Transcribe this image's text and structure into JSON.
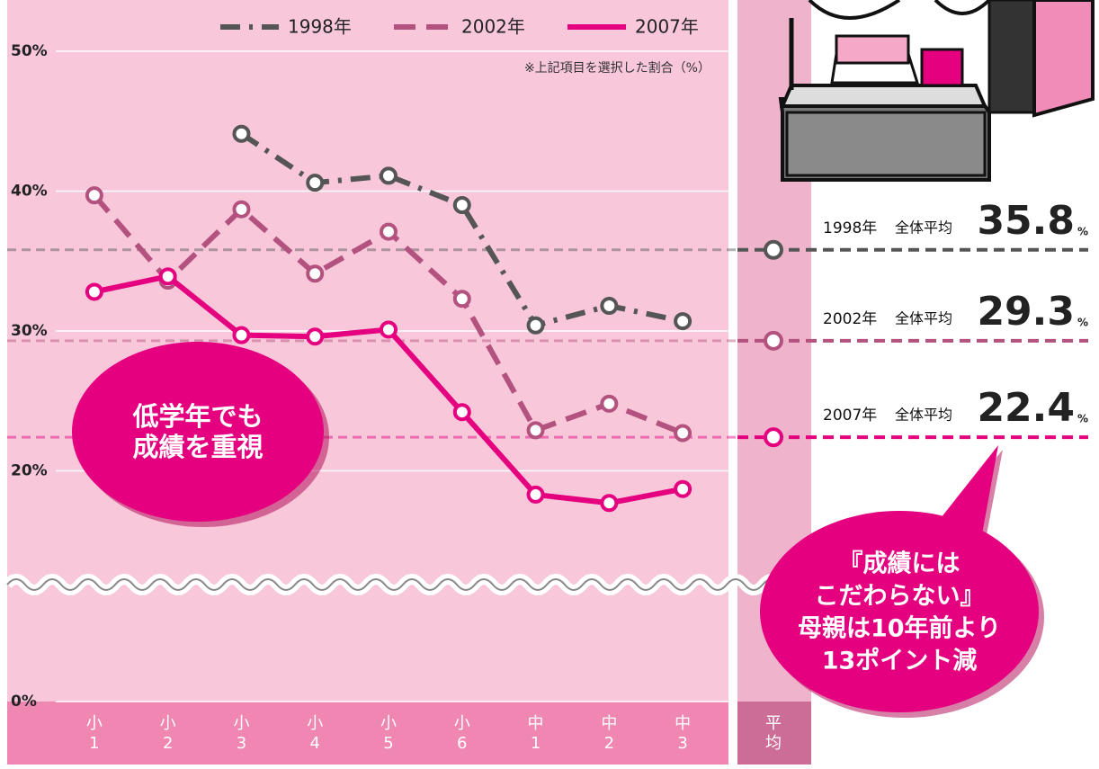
{
  "chart_data": {
    "type": "line",
    "note": "※上記項目を選択した割合（%）",
    "categories": [
      "小1",
      "小2",
      "小3",
      "小4",
      "小5",
      "小6",
      "中1",
      "中2",
      "中3"
    ],
    "average_category": "平均",
    "average_label": "全体平均",
    "average_unit": "%",
    "ylim": [
      0,
      50
    ],
    "yticks": [
      {
        "value": 0,
        "label": "0%"
      },
      {
        "value": 20,
        "label": "20%"
      },
      {
        "value": 30,
        "label": "30%"
      },
      {
        "value": 40,
        "label": "40%"
      },
      {
        "value": 50,
        "label": "50%"
      }
    ],
    "grid": true,
    "series": [
      {
        "name": "1998年",
        "color": "#555555",
        "dash": "dashdot",
        "values": [
          null,
          null,
          44.1,
          40.6,
          41.1,
          39.0,
          30.4,
          31.8,
          30.7
        ],
        "average": 35.8
      },
      {
        "name": "2002年",
        "color": "#b4527f",
        "dash": "dashed",
        "values": [
          39.7,
          33.6,
          38.7,
          34.1,
          37.1,
          32.3,
          22.9,
          24.8,
          22.7
        ],
        "average": 29.3
      },
      {
        "name": "2007年",
        "color": "#e4007f",
        "dash": "solid",
        "values": [
          32.8,
          33.9,
          29.7,
          29.6,
          30.1,
          24.2,
          18.3,
          17.7,
          18.7
        ],
        "average": 22.4
      }
    ],
    "annotations": [
      {
        "lines": [
          "低学年でも",
          "成績を重視"
        ]
      },
      {
        "lines": [
          "『成績には",
          "こだわらない』",
          "母親は10年前より",
          "13ポイント減"
        ]
      }
    ]
  }
}
